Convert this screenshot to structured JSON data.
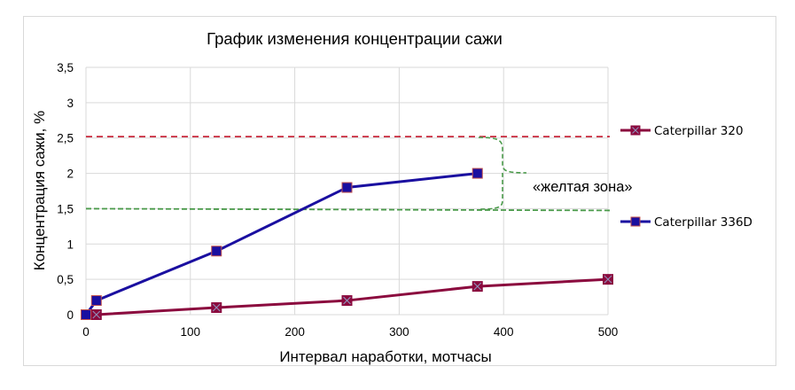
{
  "chart_data": {
    "type": "line",
    "title": "График изменения концентрации сажи",
    "xlabel": "Интервал наработки, мотчасы",
    "ylabel": "Концентрация сажи, %",
    "xlim": [
      0,
      500
    ],
    "ylim": [
      0,
      3.5
    ],
    "x_ticks": [
      "0",
      "100",
      "200",
      "300",
      "400",
      "500"
    ],
    "y_ticks": [
      "0",
      "0,5",
      "1",
      "1,5",
      "2",
      "2,5",
      "3",
      "3,5"
    ],
    "grid": true,
    "legend_position": "right",
    "series": [
      {
        "name": "Caterpillar 320",
        "color": "#8b0a3e",
        "marker": "square-x",
        "x": [
          10,
          125,
          250,
          375,
          500
        ],
        "y": [
          0,
          0.1,
          0.2,
          0.4,
          0.5
        ]
      },
      {
        "name": "Caterpillar 336D",
        "color": "#1a0fa0",
        "marker": "square",
        "x": [
          0,
          10,
          125,
          250,
          375
        ],
        "y": [
          0,
          0.2,
          0.9,
          1.8,
          2.0
        ]
      }
    ],
    "reference_lines": [
      {
        "y": 2.52,
        "color": "#c8283c",
        "style": "dashed"
      },
      {
        "y": 1.5,
        "color": "#4a9a4a",
        "style": "dashed"
      }
    ],
    "annotations": [
      {
        "text": "«желтая зона»",
        "type": "brace",
        "y_range": [
          1.5,
          2.52
        ],
        "color": "#4a9a4a"
      }
    ]
  }
}
